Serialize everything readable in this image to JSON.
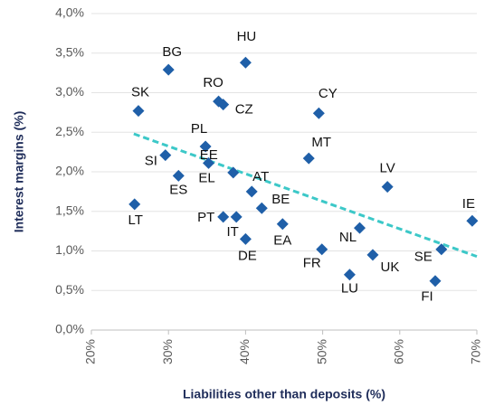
{
  "chart_data": {
    "type": "scatter",
    "xlabel": "Liabilities other than deposits (%)",
    "ylabel": "Interest margins (%)",
    "labels": [
      "SK",
      "BG",
      "HU",
      "RO",
      "CZ",
      "CY",
      "PL",
      "SI",
      "EE",
      "MT",
      "ES",
      "EL",
      "AT",
      "LV",
      "BE",
      "LT",
      "PT",
      "IT",
      "EA",
      "IE",
      "NL",
      "DE",
      "FR",
      "UK",
      "SE",
      "LU",
      "FI"
    ],
    "x": [
      26.1,
      30.0,
      40.0,
      36.5,
      37.1,
      49.5,
      34.8,
      29.6,
      38.4,
      48.2,
      31.3,
      35.2,
      40.8,
      58.4,
      42.1,
      25.6,
      37.1,
      38.8,
      44.8,
      69.4,
      54.8,
      40.0,
      49.9,
      56.5,
      65.4,
      53.5,
      64.6
    ],
    "values": [
      2.77,
      3.29,
      3.38,
      2.89,
      2.85,
      2.74,
      2.32,
      2.21,
      1.99,
      2.17,
      1.95,
      2.11,
      1.75,
      1.81,
      1.54,
      1.59,
      1.43,
      1.43,
      1.34,
      1.38,
      1.29,
      1.15,
      1.02,
      0.95,
      1.02,
      0.7,
      0.62
    ],
    "color": "#1f5fa8",
    "trendline": {
      "x": [
        25.5,
        70
      ],
      "values": [
        2.48,
        0.93
      ],
      "color": "#3cc8c8"
    },
    "xlim": [
      20,
      70
    ],
    "xticks": [
      {
        "value": 20,
        "label": "20%"
      },
      {
        "value": 30,
        "label": "30%"
      },
      {
        "value": 40,
        "label": "40%"
      },
      {
        "value": 50,
        "label": "50%"
      },
      {
        "value": 60,
        "label": "60%"
      },
      {
        "value": 70,
        "label": "70%"
      }
    ],
    "ylim": [
      0,
      4
    ],
    "yticks": [
      {
        "value": 0,
        "label": "0,0%"
      },
      {
        "value": 0.5,
        "label": "0,5%"
      },
      {
        "value": 1,
        "label": "1,0%"
      },
      {
        "value": 1.5,
        "label": "1,5%"
      },
      {
        "value": 2,
        "label": "2,0%"
      },
      {
        "value": 2.5,
        "label": "2,5%"
      },
      {
        "value": 3,
        "label": "3,0%"
      },
      {
        "value": 3.5,
        "label": "3,5%"
      },
      {
        "value": 4,
        "label": "4,0%"
      }
    ],
    "grid": true
  }
}
